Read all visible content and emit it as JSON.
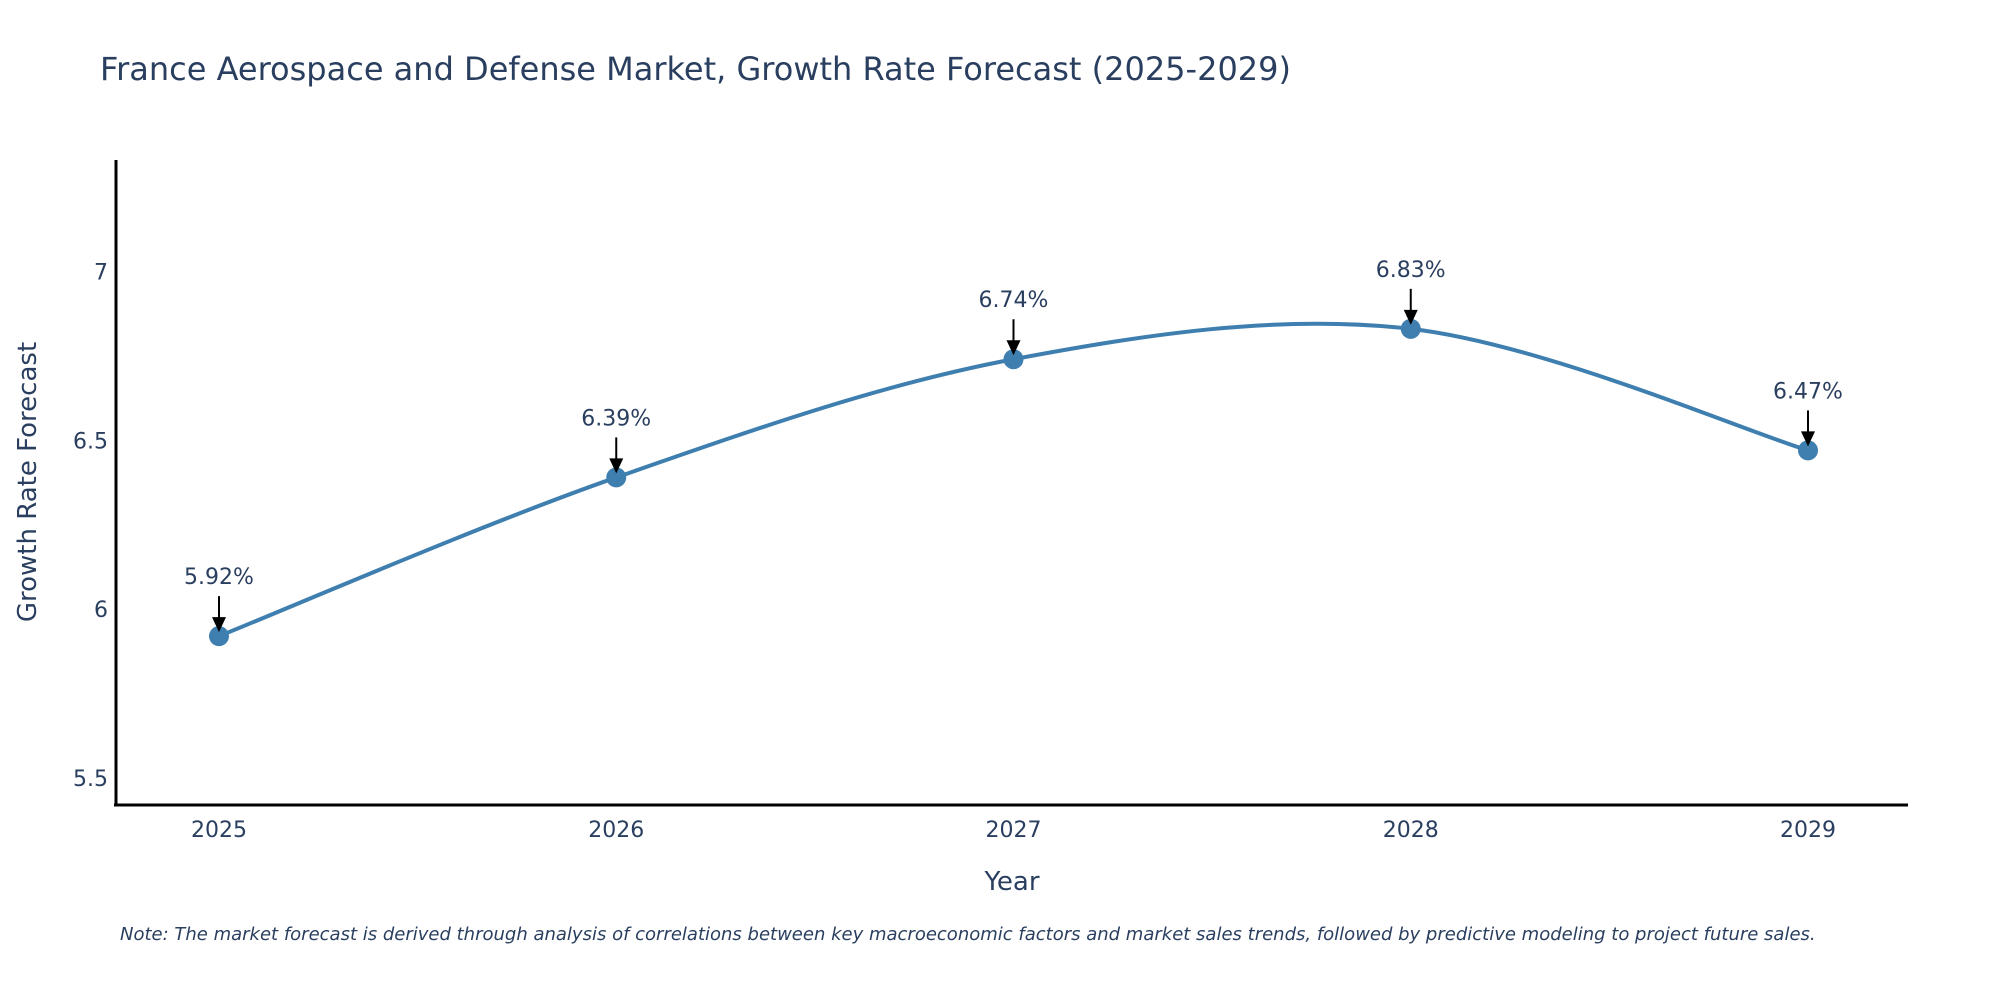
{
  "chart_data": {
    "type": "line",
    "title": "France Aerospace and Defense Market, Growth Rate Forecast (2025-2029)",
    "xlabel": "Year",
    "ylabel": "Growth Rate Forecast",
    "categories": [
      "2025",
      "2026",
      "2027",
      "2028",
      "2029"
    ],
    "series": [
      {
        "name": "Growth Rate Forecast",
        "values": [
          5.92,
          6.39,
          6.74,
          6.83,
          6.47
        ],
        "labels": [
          "5.92%",
          "6.39%",
          "6.74%",
          "6.83%",
          "6.47%"
        ]
      }
    ],
    "ylim": [
      5.42,
      7.33
    ],
    "yticks": [
      5.5,
      6,
      6.5,
      7
    ],
    "ytick_labels": [
      "5.5",
      "6",
      "6.5",
      "7"
    ],
    "line_shape": "spline",
    "grid": false,
    "colors": {
      "line": "#3f7fb0",
      "marker": "#3f7fb0",
      "text": "#2a3f5f",
      "axis": "#000000"
    },
    "note": "Note: The market forecast is derived through analysis of correlations between key macroeconomic factors and market sales trends, followed by predictive modeling to project future sales."
  }
}
